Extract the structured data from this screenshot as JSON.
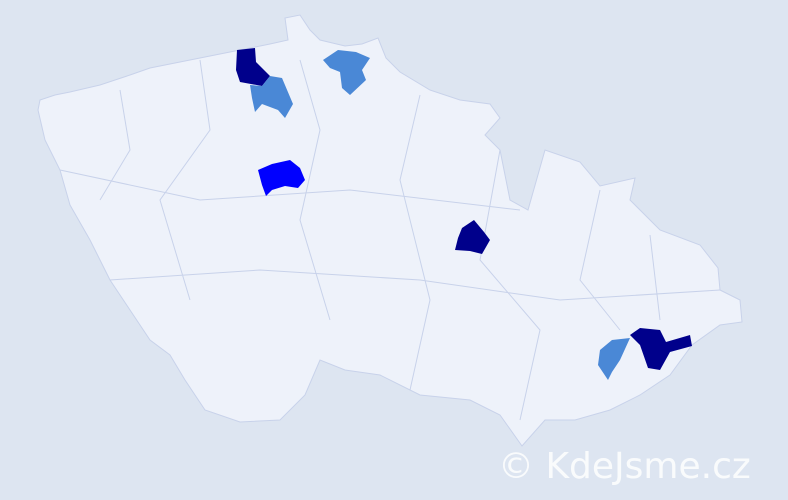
{
  "map": {
    "background_color": "#dde5f1",
    "land_color": "#eef2fa",
    "border_color": "#c8d2ea",
    "legend_levels": {
      "high": "#00008b",
      "medium": "#0000ff",
      "low": "#4a88d6"
    },
    "highlighted_districts": [
      {
        "level": "high",
        "color": "#00008b"
      },
      {
        "level": "low",
        "color": "#4a88d6"
      },
      {
        "level": "low",
        "color": "#4a88d6"
      },
      {
        "level": "medium",
        "color": "#0000ff"
      },
      {
        "level": "high",
        "color": "#00008b"
      },
      {
        "level": "high",
        "color": "#00008b"
      },
      {
        "level": "low",
        "color": "#4a88d6"
      }
    ]
  },
  "watermark": "© KdeJsme.cz"
}
